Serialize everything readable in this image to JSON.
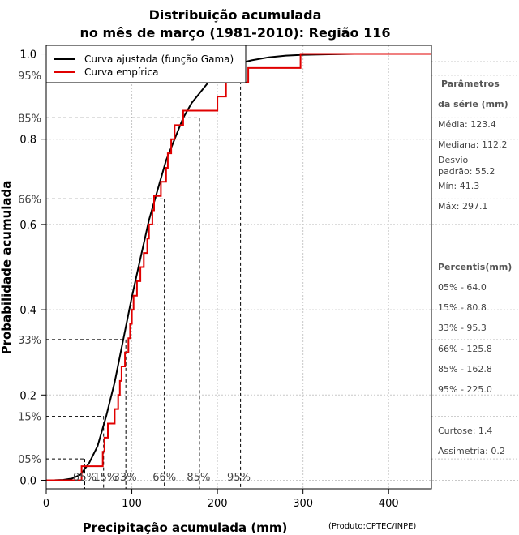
{
  "chart_data": {
    "type": "line",
    "title": [
      "Distribuição acumulada",
      "no mês de março (1981-2010): Região 116"
    ],
    "xlabel": "Precipitação acumulada (mm)",
    "ylabel": "Probabilidade acumulada",
    "credit": "(Produto:CPTEC/INPE)",
    "xlim": [
      0,
      450
    ],
    "ylim": [
      -0.02,
      1.02
    ],
    "xticks": [
      0,
      100,
      200,
      300,
      400
    ],
    "yticks": [
      0.0,
      0.2,
      0.4,
      0.6,
      0.8,
      1.0
    ],
    "grid": true,
    "legend_position": "top-left",
    "series": [
      {
        "name": "Curva ajustada (função Gama)",
        "color": "#000000",
        "style": "line",
        "points": [
          [
            0,
            0
          ],
          [
            10,
            0.0002
          ],
          [
            20,
            0.001
          ],
          [
            30,
            0.004
          ],
          [
            40,
            0.013
          ],
          [
            50,
            0.04
          ],
          [
            60,
            0.08
          ],
          [
            70,
            0.15
          ],
          [
            80,
            0.23
          ],
          [
            90,
            0.33
          ],
          [
            100,
            0.43
          ],
          [
            110,
            0.52
          ],
          [
            120,
            0.61
          ],
          [
            130,
            0.68
          ],
          [
            140,
            0.75
          ],
          [
            150,
            0.8
          ],
          [
            160,
            0.85
          ],
          [
            170,
            0.885
          ],
          [
            180,
            0.91
          ],
          [
            190,
            0.935
          ],
          [
            200,
            0.95
          ],
          [
            210,
            0.963
          ],
          [
            220,
            0.973
          ],
          [
            230,
            0.98
          ],
          [
            240,
            0.985
          ],
          [
            260,
            0.992
          ],
          [
            280,
            0.996
          ],
          [
            300,
            0.998
          ],
          [
            330,
            0.999
          ],
          [
            360,
            1.0
          ],
          [
            395,
            1.0
          ]
        ]
      },
      {
        "name": "Curva empírica",
        "color": "#e00000",
        "style": "step",
        "points": [
          [
            0,
            0
          ],
          [
            41.3,
            0
          ],
          [
            41.3,
            0.033
          ],
          [
            66,
            0.033
          ],
          [
            66,
            0.067
          ],
          [
            68,
            0.067
          ],
          [
            68,
            0.1
          ],
          [
            72,
            0.1
          ],
          [
            72,
            0.133
          ],
          [
            80,
            0.133
          ],
          [
            80,
            0.167
          ],
          [
            84,
            0.167
          ],
          [
            84,
            0.2
          ],
          [
            86,
            0.2
          ],
          [
            86,
            0.233
          ],
          [
            88,
            0.233
          ],
          [
            88,
            0.267
          ],
          [
            92,
            0.267
          ],
          [
            92,
            0.3
          ],
          [
            96,
            0.3
          ],
          [
            96,
            0.333
          ],
          [
            98,
            0.333
          ],
          [
            98,
            0.367
          ],
          [
            100,
            0.367
          ],
          [
            100,
            0.4
          ],
          [
            102,
            0.4
          ],
          [
            102,
            0.433
          ],
          [
            106,
            0.433
          ],
          [
            106,
            0.467
          ],
          [
            110,
            0.467
          ],
          [
            110,
            0.5
          ],
          [
            114,
            0.5
          ],
          [
            114,
            0.533
          ],
          [
            118,
            0.533
          ],
          [
            118,
            0.567
          ],
          [
            120,
            0.567
          ],
          [
            120,
            0.6
          ],
          [
            124,
            0.6
          ],
          [
            124,
            0.633
          ],
          [
            126,
            0.633
          ],
          [
            126,
            0.667
          ],
          [
            134,
            0.667
          ],
          [
            134,
            0.7
          ],
          [
            140,
            0.7
          ],
          [
            140,
            0.733
          ],
          [
            142,
            0.733
          ],
          [
            142,
            0.767
          ],
          [
            146,
            0.767
          ],
          [
            146,
            0.8
          ],
          [
            150,
            0.8
          ],
          [
            150,
            0.833
          ],
          [
            160,
            0.833
          ],
          [
            160,
            0.867
          ],
          [
            200,
            0.867
          ],
          [
            200,
            0.9
          ],
          [
            210,
            0.9
          ],
          [
            210,
            0.933
          ],
          [
            236,
            0.933
          ],
          [
            236,
            0.967
          ],
          [
            297.1,
            0.967
          ],
          [
            297.1,
            1.0
          ],
          [
            450,
            1.0
          ]
        ]
      }
    ],
    "percentile_guides": [
      {
        "label": "05%",
        "p": 0.05,
        "x": 64.0,
        "label_x": 45
      },
      {
        "label": "15%",
        "p": 0.15,
        "x": 80.8,
        "label_x": 69
      },
      {
        "label": "33%",
        "p": 0.33,
        "x": 95.3,
        "label_x": 92
      },
      {
        "label": "66%",
        "p": 0.66,
        "x": 125.8,
        "label_x": 138
      },
      {
        "label": "85%",
        "p": 0.85,
        "x": 162.8,
        "label_x": 178
      },
      {
        "label": "95%",
        "p": 0.95,
        "x": 225.0,
        "label_x": 225
      }
    ],
    "guide_lines": [
      {
        "p": 0.05,
        "x": 45
      },
      {
        "p": 0.15,
        "x": 67
      },
      {
        "p": 0.33,
        "x": 93
      },
      {
        "p": 0.66,
        "x": 138
      },
      {
        "p": 0.85,
        "x": 179
      },
      {
        "p": 0.95,
        "x": 227
      }
    ]
  },
  "sidebar": {
    "params_heading": [
      "Parâmetros",
      "da série (mm)"
    ],
    "params": [
      "Média: 123.4",
      "Mediana: 112.2",
      "Desvio",
      "padrão: 55.2",
      "Mín: 41.3",
      "Máx: 297.1"
    ],
    "percentiles_heading": "Percentis(mm)",
    "percentiles": [
      "05% - 64.0",
      "15% - 80.8",
      "33% - 95.3",
      "66% - 125.8",
      "85% - 162.8",
      "95% - 225.0"
    ],
    "curtose": "Curtose: 1.4",
    "assimetria": "Assimetria: 0.2"
  }
}
